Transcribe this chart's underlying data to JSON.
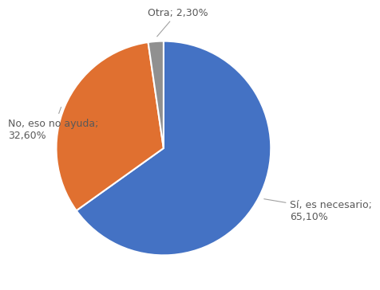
{
  "labels": [
    "Sí, es necesario",
    "No, eso no ayuda",
    "Otra"
  ],
  "values": [
    65.1,
    32.6,
    2.3
  ],
  "colors": [
    "#4472C4",
    "#E07030",
    "#909090"
  ],
  "label_texts": [
    "Sí, es necesario;\n65,10%",
    "No, eso no ayuda;\n32,60%",
    "Otra; 2,30%"
  ],
  "background_color": "#ffffff",
  "startangle": 90,
  "font_size": 9,
  "text_color": "#595959",
  "line_color": "#a0a0a0",
  "edge_color": "#ffffff",
  "edge_linewidth": 1.5
}
